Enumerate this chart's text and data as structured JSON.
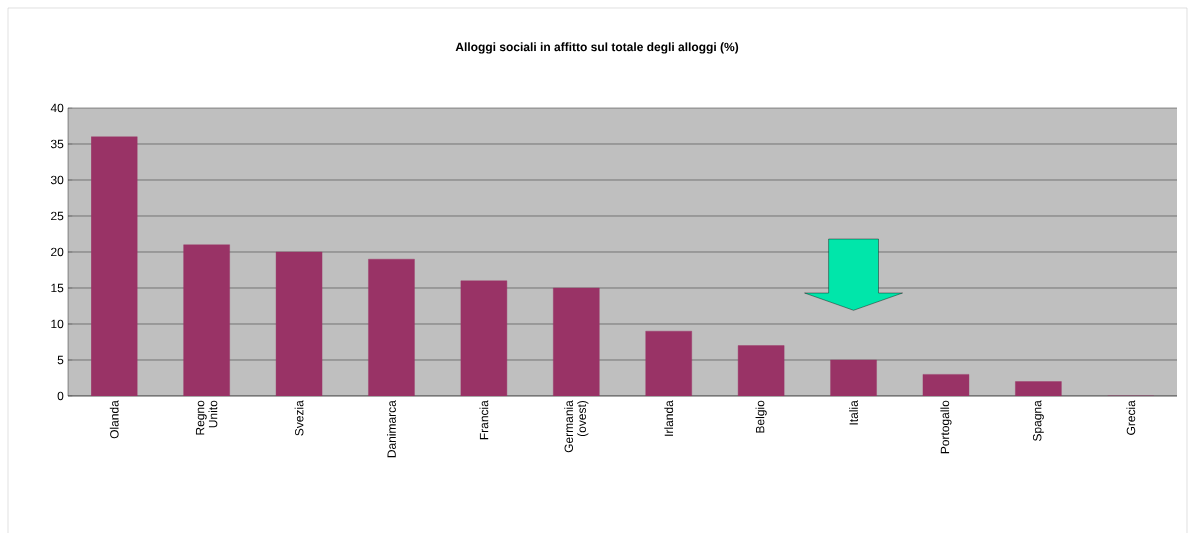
{
  "chart_data": {
    "type": "bar",
    "title": "Alloggi sociali in affitto sul totale degli alloggi (%)",
    "categories": [
      "Olanda",
      "Regno Unito",
      "Svezia",
      "Danimarca",
      "Francia",
      "Germania (ovest)",
      "Irlanda",
      "Belgio",
      "Italia",
      "Portogallo",
      "Spagna",
      "Grecia"
    ],
    "values": [
      36,
      21,
      20,
      19,
      16,
      15,
      9,
      7,
      5,
      3,
      2,
      0
    ],
    "color": "#993366",
    "ylim": [
      0,
      40
    ],
    "yticks": [
      0,
      5,
      10,
      15,
      20,
      25,
      30,
      35,
      40
    ],
    "grid": "y"
  }
}
